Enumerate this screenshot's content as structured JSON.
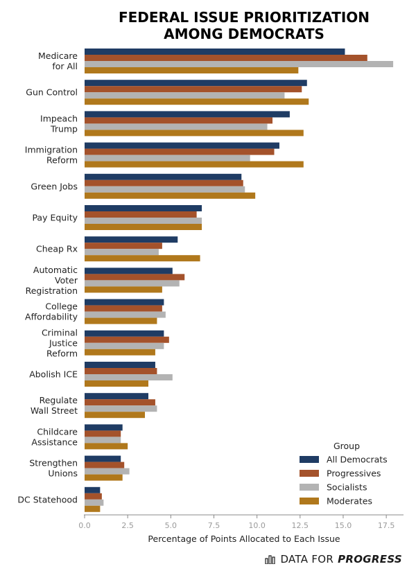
{
  "chart_data": {
    "type": "bar",
    "orientation": "horizontal",
    "title_lines": [
      "FEDERAL ISSUE PRIORITIZATION",
      "AMONG DEMOCRATS"
    ],
    "xlabel": "Percentage of Points Allocated to Each Issue",
    "xlim": [
      0,
      18.5
    ],
    "xticks": [
      "0.0",
      "2.5",
      "5.0",
      "7.5",
      "10.0",
      "12.5",
      "15.0",
      "17.5"
    ],
    "xtick_values": [
      0,
      2.5,
      5,
      7.5,
      10,
      12.5,
      15,
      17.5
    ],
    "grid": false,
    "legend": {
      "title": "Group",
      "placement": "lower-right"
    },
    "categories": [
      [
        "Medicare",
        "for All"
      ],
      [
        "Gun Control"
      ],
      [
        "Impeach",
        "Trump"
      ],
      [
        "Immigration",
        "Reform"
      ],
      [
        "Green Jobs"
      ],
      [
        "Pay Equity"
      ],
      [
        "Cheap Rx"
      ],
      [
        "Automatic",
        "Voter",
        "Registration"
      ],
      [
        "College",
        "Affordability"
      ],
      [
        "Criminal",
        "Justice",
        "Reform"
      ],
      [
        "Abolish ICE"
      ],
      [
        "Regulate",
        "Wall Street"
      ],
      [
        "Childcare",
        "Assistance"
      ],
      [
        "Strengthen",
        "Unions"
      ],
      [
        "DC Statehood"
      ]
    ],
    "series": [
      {
        "name": "All Democrats",
        "color": "#1f3c64",
        "values": [
          15.1,
          12.9,
          11.9,
          11.3,
          9.1,
          6.8,
          5.4,
          5.1,
          4.6,
          4.6,
          4.1,
          3.7,
          2.2,
          2.1,
          0.9
        ]
      },
      {
        "name": "Progressives",
        "color": "#a4522b",
        "values": [
          16.4,
          12.6,
          10.9,
          11.0,
          9.2,
          6.5,
          4.5,
          5.8,
          4.5,
          4.9,
          4.2,
          4.1,
          2.1,
          2.3,
          1.0
        ]
      },
      {
        "name": "Socialists",
        "color": "#b3b3b3",
        "values": [
          17.9,
          11.6,
          10.6,
          9.6,
          9.3,
          6.8,
          4.3,
          5.5,
          4.7,
          4.6,
          5.1,
          4.2,
          2.1,
          2.6,
          1.1
        ]
      },
      {
        "name": "Moderates",
        "color": "#b0781c",
        "values": [
          12.4,
          13.0,
          12.7,
          12.7,
          9.9,
          6.8,
          6.7,
          4.5,
          4.2,
          4.1,
          3.7,
          3.5,
          2.5,
          2.2,
          0.9
        ]
      }
    ]
  },
  "brand": {
    "part1": "DATA FOR",
    "part2": "PROGRESS"
  }
}
